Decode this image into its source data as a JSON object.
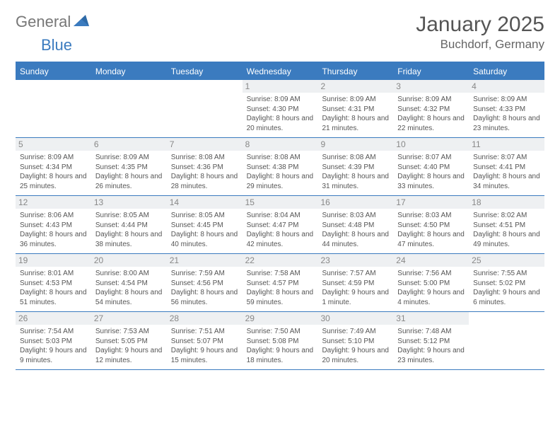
{
  "brand": {
    "part1": "General",
    "part2": "Blue",
    "color1": "#777777",
    "color2": "#3b7bbf"
  },
  "title": "January 2025",
  "location": "Buchdorf, Germany",
  "theme": {
    "accent": "#3b7bbf",
    "row_border": "#3b7bbf",
    "daynum_bg": "#eef0f2",
    "text": "#555555",
    "page_bg": "#ffffff"
  },
  "day_names": [
    "Sunday",
    "Monday",
    "Tuesday",
    "Wednesday",
    "Thursday",
    "Friday",
    "Saturday"
  ],
  "weeks": [
    [
      {
        "n": "",
        "sr": "",
        "ss": "",
        "dl": "",
        "empty": true
      },
      {
        "n": "",
        "sr": "",
        "ss": "",
        "dl": "",
        "empty": true
      },
      {
        "n": "",
        "sr": "",
        "ss": "",
        "dl": "",
        "empty": true
      },
      {
        "n": "1",
        "sr": "8:09 AM",
        "ss": "4:30 PM",
        "dl": "8 hours and 20 minutes."
      },
      {
        "n": "2",
        "sr": "8:09 AM",
        "ss": "4:31 PM",
        "dl": "8 hours and 21 minutes."
      },
      {
        "n": "3",
        "sr": "8:09 AM",
        "ss": "4:32 PM",
        "dl": "8 hours and 22 minutes."
      },
      {
        "n": "4",
        "sr": "8:09 AM",
        "ss": "4:33 PM",
        "dl": "8 hours and 23 minutes."
      }
    ],
    [
      {
        "n": "5",
        "sr": "8:09 AM",
        "ss": "4:34 PM",
        "dl": "8 hours and 25 minutes."
      },
      {
        "n": "6",
        "sr": "8:09 AM",
        "ss": "4:35 PM",
        "dl": "8 hours and 26 minutes."
      },
      {
        "n": "7",
        "sr": "8:08 AM",
        "ss": "4:36 PM",
        "dl": "8 hours and 28 minutes."
      },
      {
        "n": "8",
        "sr": "8:08 AM",
        "ss": "4:38 PM",
        "dl": "8 hours and 29 minutes."
      },
      {
        "n": "9",
        "sr": "8:08 AM",
        "ss": "4:39 PM",
        "dl": "8 hours and 31 minutes."
      },
      {
        "n": "10",
        "sr": "8:07 AM",
        "ss": "4:40 PM",
        "dl": "8 hours and 33 minutes."
      },
      {
        "n": "11",
        "sr": "8:07 AM",
        "ss": "4:41 PM",
        "dl": "8 hours and 34 minutes."
      }
    ],
    [
      {
        "n": "12",
        "sr": "8:06 AM",
        "ss": "4:43 PM",
        "dl": "8 hours and 36 minutes."
      },
      {
        "n": "13",
        "sr": "8:05 AM",
        "ss": "4:44 PM",
        "dl": "8 hours and 38 minutes."
      },
      {
        "n": "14",
        "sr": "8:05 AM",
        "ss": "4:45 PM",
        "dl": "8 hours and 40 minutes."
      },
      {
        "n": "15",
        "sr": "8:04 AM",
        "ss": "4:47 PM",
        "dl": "8 hours and 42 minutes."
      },
      {
        "n": "16",
        "sr": "8:03 AM",
        "ss": "4:48 PM",
        "dl": "8 hours and 44 minutes."
      },
      {
        "n": "17",
        "sr": "8:03 AM",
        "ss": "4:50 PM",
        "dl": "8 hours and 47 minutes."
      },
      {
        "n": "18",
        "sr": "8:02 AM",
        "ss": "4:51 PM",
        "dl": "8 hours and 49 minutes."
      }
    ],
    [
      {
        "n": "19",
        "sr": "8:01 AM",
        "ss": "4:53 PM",
        "dl": "8 hours and 51 minutes."
      },
      {
        "n": "20",
        "sr": "8:00 AM",
        "ss": "4:54 PM",
        "dl": "8 hours and 54 minutes."
      },
      {
        "n": "21",
        "sr": "7:59 AM",
        "ss": "4:56 PM",
        "dl": "8 hours and 56 minutes."
      },
      {
        "n": "22",
        "sr": "7:58 AM",
        "ss": "4:57 PM",
        "dl": "8 hours and 59 minutes."
      },
      {
        "n": "23",
        "sr": "7:57 AM",
        "ss": "4:59 PM",
        "dl": "9 hours and 1 minute."
      },
      {
        "n": "24",
        "sr": "7:56 AM",
        "ss": "5:00 PM",
        "dl": "9 hours and 4 minutes."
      },
      {
        "n": "25",
        "sr": "7:55 AM",
        "ss": "5:02 PM",
        "dl": "9 hours and 6 minutes."
      }
    ],
    [
      {
        "n": "26",
        "sr": "7:54 AM",
        "ss": "5:03 PM",
        "dl": "9 hours and 9 minutes."
      },
      {
        "n": "27",
        "sr": "7:53 AM",
        "ss": "5:05 PM",
        "dl": "9 hours and 12 minutes."
      },
      {
        "n": "28",
        "sr": "7:51 AM",
        "ss": "5:07 PM",
        "dl": "9 hours and 15 minutes."
      },
      {
        "n": "29",
        "sr": "7:50 AM",
        "ss": "5:08 PM",
        "dl": "9 hours and 18 minutes."
      },
      {
        "n": "30",
        "sr": "7:49 AM",
        "ss": "5:10 PM",
        "dl": "9 hours and 20 minutes."
      },
      {
        "n": "31",
        "sr": "7:48 AM",
        "ss": "5:12 PM",
        "dl": "9 hours and 23 minutes."
      },
      {
        "n": "",
        "sr": "",
        "ss": "",
        "dl": "",
        "empty": true
      }
    ]
  ],
  "labels": {
    "sunrise": "Sunrise:",
    "sunset": "Sunset:",
    "daylight": "Daylight:"
  }
}
